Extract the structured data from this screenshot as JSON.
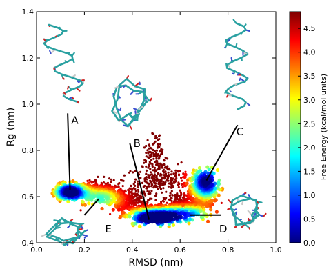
{
  "chart_data": {
    "type": "heatmap",
    "plot_kind": "free-energy landscape (2D scatter coloured by free energy)",
    "title": "",
    "xlabel": "RMSD (nm)",
    "ylabel": "Rg (nm)",
    "xlim": [
      0.0,
      1.0
    ],
    "ylim": [
      0.4,
      1.4
    ],
    "x_ticks": [
      "0.0",
      "0.2",
      "0.4",
      "0.6",
      "0.8",
      "1.0"
    ],
    "y_ticks": [
      "0.4",
      "0.6",
      "0.8",
      "1.0",
      "1.2",
      "1.4"
    ],
    "grid": false,
    "colorbar": {
      "label": "Free Energy (kcal/mol units)",
      "range": [
        0.0,
        4.85
      ],
      "ticks": [
        "0.0",
        "0.5",
        "1.0",
        "1.5",
        "2.0",
        "2.5",
        "3.0",
        "3.5",
        "4.0",
        "4.5"
      ],
      "colormap": "jet",
      "colors": [
        "#00007f",
        "#0000ff",
        "#007fff",
        "#00ffff",
        "#7fff7f",
        "#ffff00",
        "#ff7f00",
        "#ff0000",
        "#7f0000"
      ]
    },
    "minima": [
      {
        "label": "A",
        "rmsd": 0.14,
        "rg": 0.62,
        "free_energy": 0.5
      },
      {
        "label": "B",
        "rmsd": 0.48,
        "rg": 0.5,
        "free_energy": 0.0
      },
      {
        "label": "C",
        "rmsd": 0.7,
        "rg": 0.66,
        "free_energy": 0.5
      },
      {
        "label": "D",
        "rmsd": 0.63,
        "rg": 0.52,
        "free_energy": 1.5
      },
      {
        "label": "E",
        "rmsd": 0.27,
        "rg": 0.59,
        "free_energy": 2.5
      }
    ],
    "annotations": [
      {
        "label": "A",
        "text_at": [
          0.16,
          0.93
        ],
        "line_from": [
          0.13,
          0.96
        ],
        "line_to": [
          0.14,
          0.63
        ]
      },
      {
        "label": "B",
        "text_at": [
          0.42,
          0.83
        ],
        "line_from": [
          0.39,
          0.83
        ],
        "line_to": [
          0.47,
          0.5
        ]
      },
      {
        "label": "C",
        "text_at": [
          0.85,
          0.88
        ],
        "line_from": [
          0.84,
          0.91
        ],
        "line_to": [
          0.71,
          0.67
        ]
      },
      {
        "label": "D",
        "text_at": [
          0.78,
          0.46
        ],
        "line_from": [
          0.77,
          0.52
        ],
        "line_to": [
          0.64,
          0.52
        ]
      },
      {
        "label": "E",
        "text_at": [
          0.3,
          0.46
        ],
        "line_from": [
          0.2,
          0.52
        ],
        "line_to": [
          0.26,
          0.59
        ]
      }
    ],
    "structure_insets": [
      "A",
      "B",
      "C",
      "D",
      "E"
    ]
  }
}
